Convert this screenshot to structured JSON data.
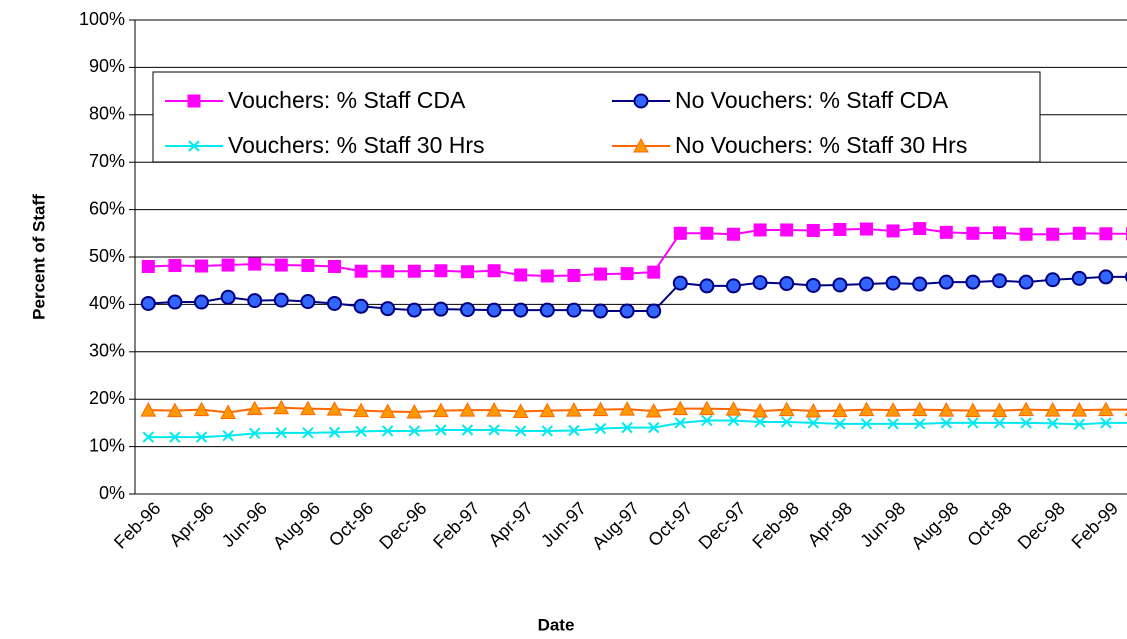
{
  "chart_data": {
    "type": "line",
    "xlabel": "Date",
    "ylabel": "Percent of Staff",
    "categories": [
      "Feb-96",
      null,
      "Apr-96",
      null,
      "Jun-96",
      null,
      "Aug-96",
      null,
      "Oct-96",
      null,
      "Dec-96",
      null,
      "Feb-97",
      null,
      "Apr-97",
      null,
      "Jun-97",
      null,
      "Aug-97",
      null,
      "Oct-97",
      null,
      "Dec-97",
      null,
      "Feb-98",
      null,
      "Apr-98",
      null,
      "Jun-98",
      null,
      "Aug-98",
      null,
      "Oct-98",
      null,
      "Dec-98",
      null,
      "Feb-99",
      null
    ],
    "ylim": [
      0,
      100
    ],
    "yticks": [
      {
        "value": 0,
        "label": "0%"
      },
      {
        "value": 10,
        "label": "10%"
      },
      {
        "value": 20,
        "label": "20%"
      },
      {
        "value": 30,
        "label": "30%"
      },
      {
        "value": 40,
        "label": "40%"
      },
      {
        "value": 50,
        "label": "50%"
      },
      {
        "value": 60,
        "label": "60%"
      },
      {
        "value": 70,
        "label": "70%"
      },
      {
        "value": 80,
        "label": "80%"
      },
      {
        "value": 90,
        "label": "90%"
      },
      {
        "value": 100,
        "label": "100%"
      }
    ],
    "grid": true,
    "series": [
      {
        "name": "Vouchers: % Staff CDA",
        "color": "#ff00ff",
        "marker": "square",
        "values": [
          48,
          48.2,
          48.1,
          48.3,
          48.5,
          48.3,
          48.2,
          48,
          47,
          47,
          47,
          47.1,
          46.9,
          47.1,
          46.2,
          46,
          46.1,
          46.4,
          46.5,
          46.8,
          55,
          55,
          54.8,
          55.7,
          55.7,
          55.6,
          55.8,
          55.9,
          55.5,
          56,
          55.2,
          55,
          55.1,
          54.8,
          54.8,
          55,
          54.9,
          54.9
        ]
      },
      {
        "name": "No Vouchers: % Staff CDA",
        "color": "#000080",
        "marker": "circle",
        "values": [
          40.2,
          40.5,
          40.5,
          41.5,
          40.8,
          40.9,
          40.6,
          40.2,
          39.6,
          39.1,
          38.8,
          39,
          38.9,
          38.8,
          38.8,
          38.8,
          38.8,
          38.6,
          38.6,
          38.6,
          44.5,
          43.9,
          43.9,
          44.6,
          44.4,
          44,
          44.1,
          44.3,
          44.5,
          44.3,
          44.7,
          44.7,
          45,
          44.7,
          45.2,
          45.5,
          45.8,
          45.8
        ]
      },
      {
        "name": "Vouchers: % Staff 30 Hrs",
        "color": "#00e8f0",
        "marker": "x",
        "values": [
          12,
          12,
          12,
          12.3,
          12.8,
          12.9,
          12.9,
          13,
          13.2,
          13.3,
          13.3,
          13.5,
          13.5,
          13.5,
          13.3,
          13.3,
          13.4,
          13.8,
          14,
          14,
          15,
          15.5,
          15.5,
          15.2,
          15.2,
          15,
          14.8,
          14.8,
          14.8,
          14.8,
          15,
          15,
          15,
          15,
          14.9,
          14.7,
          15,
          15
        ]
      },
      {
        "name": "No Vouchers: % Staff 30 Hrs",
        "color": "#ff6600",
        "marker": "triangle",
        "values": [
          17.7,
          17.6,
          17.8,
          17.2,
          18,
          18.2,
          18,
          17.9,
          17.6,
          17.4,
          17.3,
          17.6,
          17.7,
          17.7,
          17.4,
          17.6,
          17.7,
          17.8,
          17.9,
          17.5,
          18,
          18,
          17.9,
          17.5,
          17.8,
          17.5,
          17.6,
          17.8,
          17.7,
          17.8,
          17.7,
          17.6,
          17.6,
          17.8,
          17.7,
          17.7,
          17.8,
          17.8
        ]
      }
    ]
  }
}
